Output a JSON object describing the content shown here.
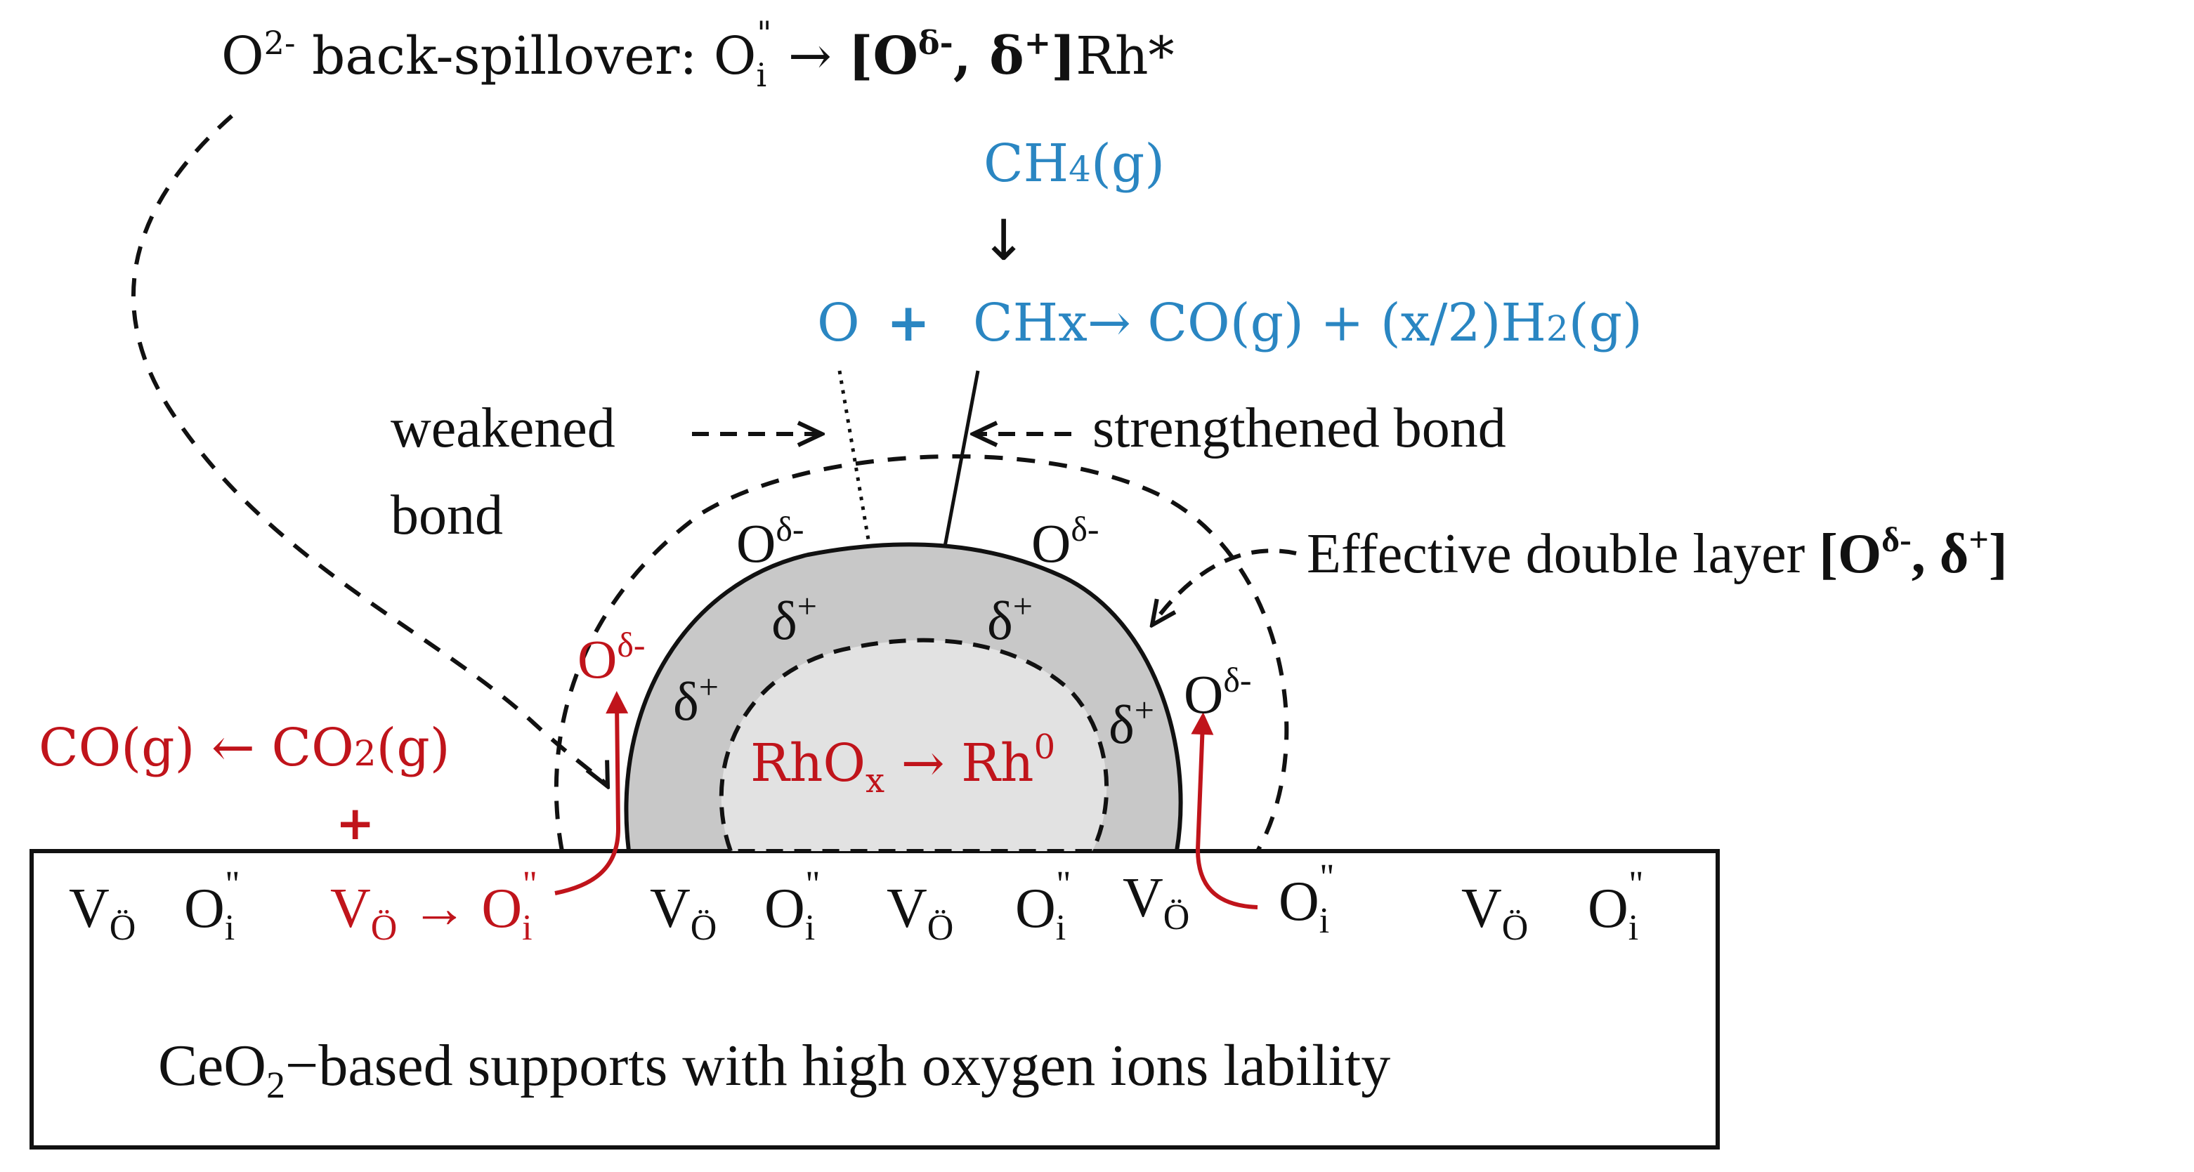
{
  "colors": {
    "black": "#111111",
    "red": "#c0141b",
    "blue": "#2a86c2",
    "particle_outer": "#c8c8c8",
    "particle_inner": "#e2e2e2"
  },
  "header": {
    "spill_prefix": "O",
    "spill_prefix_sup": "2-",
    "spill_text": " back-spillover: O",
    "spill_sub": "i",
    "spill_sup": "\"",
    "spill_arrow": " → ",
    "spill_bracket_open": "[O",
    "spill_delta_minus": "δ-",
    "spill_comma": ",  δ",
    "spill_delta_plus": "+",
    "spill_bracket_close": "]",
    "spill_rh": "Rh*"
  },
  "methane": {
    "ch4_main": "CH",
    "ch4_sub": "4",
    "ch4_tail": "(g)",
    "down_arrow": "↓",
    "o": "O",
    "plus": "+",
    "reaction_main": "CHx→ CO(g) + (x/2)H",
    "reaction_sub": "2",
    "reaction_tail": "(g)"
  },
  "bonds": {
    "weakened_line1": "weakened",
    "weakened_line2": "bond",
    "strengthened": "strengthened bond"
  },
  "double_layer": {
    "label": "Effective double layer ",
    "bracket_open": "[O",
    "delta_minus": "δ-",
    "comma": ",  δ",
    "delta_plus": "+",
    "bracket_close": "]"
  },
  "particle": {
    "o_label": "O",
    "o_sup": "δ-",
    "delta_label": "δ",
    "delta_sup": "+",
    "core_main": "RhO",
    "core_sub": "x",
    "core_arrow": " → Rh",
    "core_sup": "0"
  },
  "gas_red": {
    "co_left": "CO(g) ←  CO",
    "co2_sub": "2",
    "co2_tail": "(g)",
    "plus": "+"
  },
  "support": {
    "v_label": "V",
    "v_sub": "Ö",
    "o_label": "O",
    "o_sub": "i",
    "o_sup": "\"",
    "arrow": " → ",
    "caption_pre": "CeO",
    "caption_sub": "2",
    "caption_post": "−based supports with high oxygen ions lability"
  }
}
